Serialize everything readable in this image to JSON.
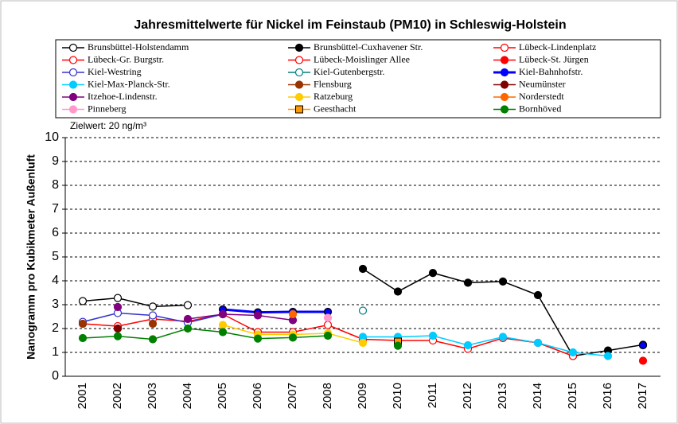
{
  "chart_data": {
    "type": "line",
    "title": "Jahresmittelwerte für Nickel im Feinstaub (PM10) in Schleswig-Holstein",
    "annotation": "Zielwert:  20 ng/m³",
    "y_label": "Nanogramm pro Kubikmeter Außenluft",
    "categories": [
      "2001",
      "2002",
      "2003",
      "2004",
      "2005",
      "2006",
      "2007",
      "2008",
      "2009",
      "2010",
      "2011",
      "2012",
      "2013",
      "2014",
      "2015",
      "2016",
      "2017"
    ],
    "ylim": [
      0,
      10
    ],
    "yticks": [
      0,
      1,
      2,
      3,
      4,
      5,
      6,
      7,
      8,
      9,
      10
    ],
    "grid": true,
    "series": [
      {
        "name": "Brunsbüttel-Holstendamm",
        "color": "#000000",
        "marker": "open",
        "values": [
          3.15,
          3.28,
          2.92,
          2.98,
          null,
          null,
          null,
          null,
          null,
          null,
          null,
          null,
          null,
          null,
          null,
          null,
          null
        ]
      },
      {
        "name": "Brunsbüttel-Cuxhavener Str.",
        "color": "#000000",
        "marker": "filled",
        "values": [
          null,
          null,
          null,
          null,
          null,
          null,
          null,
          null,
          4.5,
          3.55,
          4.33,
          3.92,
          3.97,
          3.4,
          0.85,
          1.08,
          1.32
        ]
      },
      {
        "name": "Lübeck-Lindenplatz",
        "color": "#ff0000",
        "marker": "open",
        "values": [
          null,
          null,
          null,
          null,
          null,
          null,
          null,
          null,
          1.55,
          1.5,
          1.5,
          1.15,
          1.6,
          1.4,
          0.85,
          null,
          null
        ]
      },
      {
        "name": "Lübeck-Gr. Burgstr.",
        "color": "#ff0000",
        "marker": "open",
        "values": [
          2.2,
          2.1,
          2.4,
          2.3,
          2.6,
          1.85,
          null,
          null,
          null,
          null,
          null,
          null,
          null,
          null,
          null,
          null,
          null
        ]
      },
      {
        "name": "Lübeck-Moislinger Allee",
        "color": "#ff0000",
        "marker": "open",
        "values": [
          null,
          null,
          null,
          null,
          null,
          1.85,
          1.85,
          2.15,
          1.55,
          null,
          null,
          null,
          null,
          null,
          null,
          null,
          null
        ]
      },
      {
        "name": "Lübeck-St. Jürgen",
        "color": "#ff0000",
        "marker": "filled",
        "values": [
          null,
          null,
          null,
          null,
          null,
          null,
          null,
          null,
          null,
          null,
          null,
          null,
          null,
          null,
          null,
          null,
          0.65
        ]
      },
      {
        "name": "Kiel-Westring",
        "color": "#3333cc",
        "marker": "open",
        "values": [
          2.28,
          2.65,
          2.55,
          2.25,
          2.6,
          null,
          null,
          null,
          null,
          null,
          null,
          null,
          null,
          null,
          null,
          null,
          null
        ]
      },
      {
        "name": "Kiel-Gutenbergstr.",
        "color": "#008080",
        "marker": "open",
        "values": [
          null,
          null,
          null,
          null,
          null,
          null,
          null,
          null,
          2.75,
          null,
          null,
          null,
          null,
          null,
          null,
          null,
          null
        ]
      },
      {
        "name": "Kiel-Bahnhofstr.",
        "color": "#0000ff",
        "marker": "filled",
        "width": 3,
        "values": [
          null,
          null,
          null,
          null,
          2.8,
          2.68,
          2.7,
          2.7,
          null,
          null,
          null,
          null,
          null,
          null,
          null,
          null,
          1.3
        ]
      },
      {
        "name": "Kiel-Max-Planck-Str.",
        "color": "#00ccff",
        "marker": "filled",
        "values": [
          null,
          null,
          null,
          null,
          null,
          null,
          null,
          null,
          1.65,
          1.65,
          1.7,
          1.3,
          1.65,
          1.4,
          1.0,
          0.85,
          null
        ]
      },
      {
        "name": "Flensburg",
        "color": "#993300",
        "marker": "filled",
        "values": [
          2.2,
          null,
          2.2,
          null,
          null,
          null,
          null,
          null,
          null,
          null,
          null,
          null,
          null,
          null,
          null,
          null,
          null
        ]
      },
      {
        "name": "Neumünster",
        "color": "#800000",
        "marker": "filled",
        "values": [
          null,
          2.0,
          null,
          null,
          null,
          null,
          null,
          null,
          null,
          null,
          null,
          null,
          null,
          null,
          null,
          null,
          null
        ]
      },
      {
        "name": "Itzehoe-Lindenstr.",
        "color": "#800080",
        "marker": "filled",
        "values": [
          null,
          2.9,
          null,
          2.4,
          2.6,
          2.55,
          2.35,
          null,
          null,
          null,
          null,
          null,
          null,
          null,
          null,
          null,
          null
        ]
      },
      {
        "name": "Ratzeburg",
        "color": "#ffcc00",
        "marker": "filled",
        "values": [
          null,
          null,
          null,
          null,
          2.15,
          1.75,
          1.75,
          1.8,
          1.4,
          null,
          null,
          null,
          null,
          null,
          null,
          null,
          null
        ]
      },
      {
        "name": "Norderstedt",
        "color": "#ff6600",
        "marker": "filled",
        "values": [
          null,
          null,
          null,
          null,
          null,
          null,
          2.6,
          null,
          null,
          null,
          null,
          null,
          null,
          null,
          null,
          null,
          null
        ]
      },
      {
        "name": "Pinneberg",
        "color": "#ff99cc",
        "marker": "filled",
        "values": [
          null,
          null,
          null,
          null,
          null,
          null,
          null,
          2.45,
          null,
          null,
          null,
          null,
          null,
          null,
          null,
          null,
          null
        ]
      },
      {
        "name": "Geesthacht",
        "color": "#ff9900",
        "marker": "square",
        "values": [
          null,
          null,
          null,
          null,
          null,
          null,
          null,
          null,
          null,
          1.45,
          null,
          null,
          null,
          null,
          null,
          null,
          null
        ]
      },
      {
        "name": "Bornhöved",
        "color": "#008000",
        "marker": "filled",
        "values": [
          1.6,
          1.68,
          1.55,
          2.0,
          1.85,
          1.58,
          1.62,
          1.7,
          null,
          1.28,
          null,
          null,
          null,
          null,
          null,
          null,
          null
        ]
      }
    ]
  }
}
